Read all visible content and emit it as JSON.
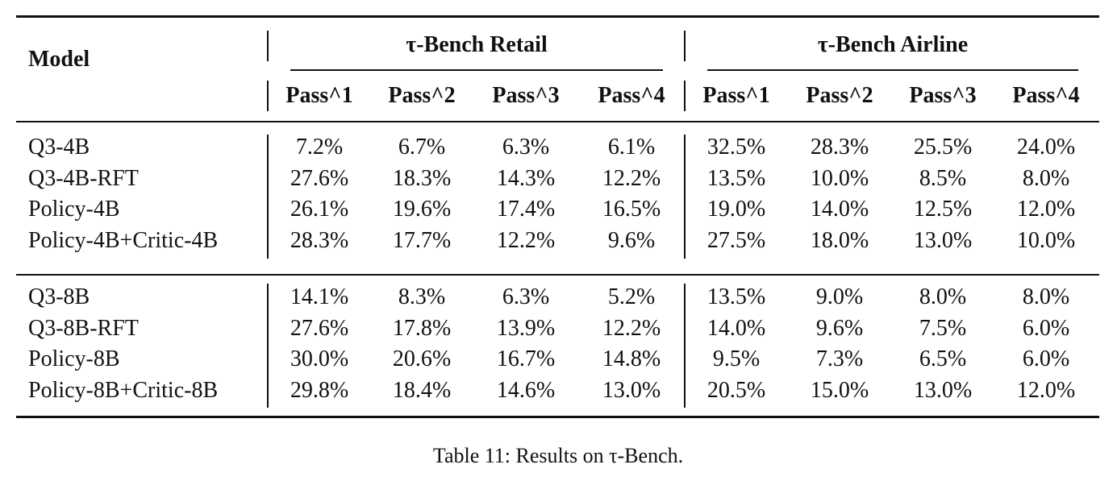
{
  "header": {
    "model": "Model",
    "groups": [
      {
        "title": "τ-Bench Retail",
        "columns": [
          "Pass^1",
          "Pass^2",
          "Pass^3",
          "Pass^4"
        ]
      },
      {
        "title": "τ-Bench Airline",
        "columns": [
          "Pass^1",
          "Pass^2",
          "Pass^3",
          "Pass^4"
        ]
      }
    ]
  },
  "table": {
    "sections": [
      {
        "rows": [
          [
            "Q3-4B",
            "7.2%",
            "6.7%",
            "6.3%",
            "6.1%",
            "32.5%",
            "28.3%",
            "25.5%",
            "24.0%"
          ],
          [
            "Q3-4B-RFT",
            "27.6%",
            "18.3%",
            "14.3%",
            "12.2%",
            "13.5%",
            "10.0%",
            "8.5%",
            "8.0%"
          ],
          [
            "Policy-4B",
            "26.1%",
            "19.6%",
            "17.4%",
            "16.5%",
            "19.0%",
            "14.0%",
            "12.5%",
            "12.0%"
          ],
          [
            "Policy-4B+Critic-4B",
            "28.3%",
            "17.7%",
            "12.2%",
            "9.6%",
            "27.5%",
            "18.0%",
            "13.0%",
            "10.0%"
          ]
        ]
      },
      {
        "rows": [
          [
            "Q3-8B",
            "14.1%",
            "8.3%",
            "6.3%",
            "5.2%",
            "13.5%",
            "9.0%",
            "8.0%",
            "8.0%"
          ],
          [
            "Q3-8B-RFT",
            "27.6%",
            "17.8%",
            "13.9%",
            "12.2%",
            "14.0%",
            "9.6%",
            "7.5%",
            "6.0%"
          ],
          [
            "Policy-8B",
            "30.0%",
            "20.6%",
            "16.7%",
            "14.8%",
            "9.5%",
            "7.3%",
            "6.5%",
            "6.0%"
          ],
          [
            "Policy-8B+Critic-8B",
            "29.8%",
            "18.4%",
            "14.6%",
            "13.0%",
            "20.5%",
            "15.0%",
            "13.0%",
            "12.0%"
          ]
        ]
      }
    ]
  },
  "caption": "Table 11: Results on τ-Bench."
}
